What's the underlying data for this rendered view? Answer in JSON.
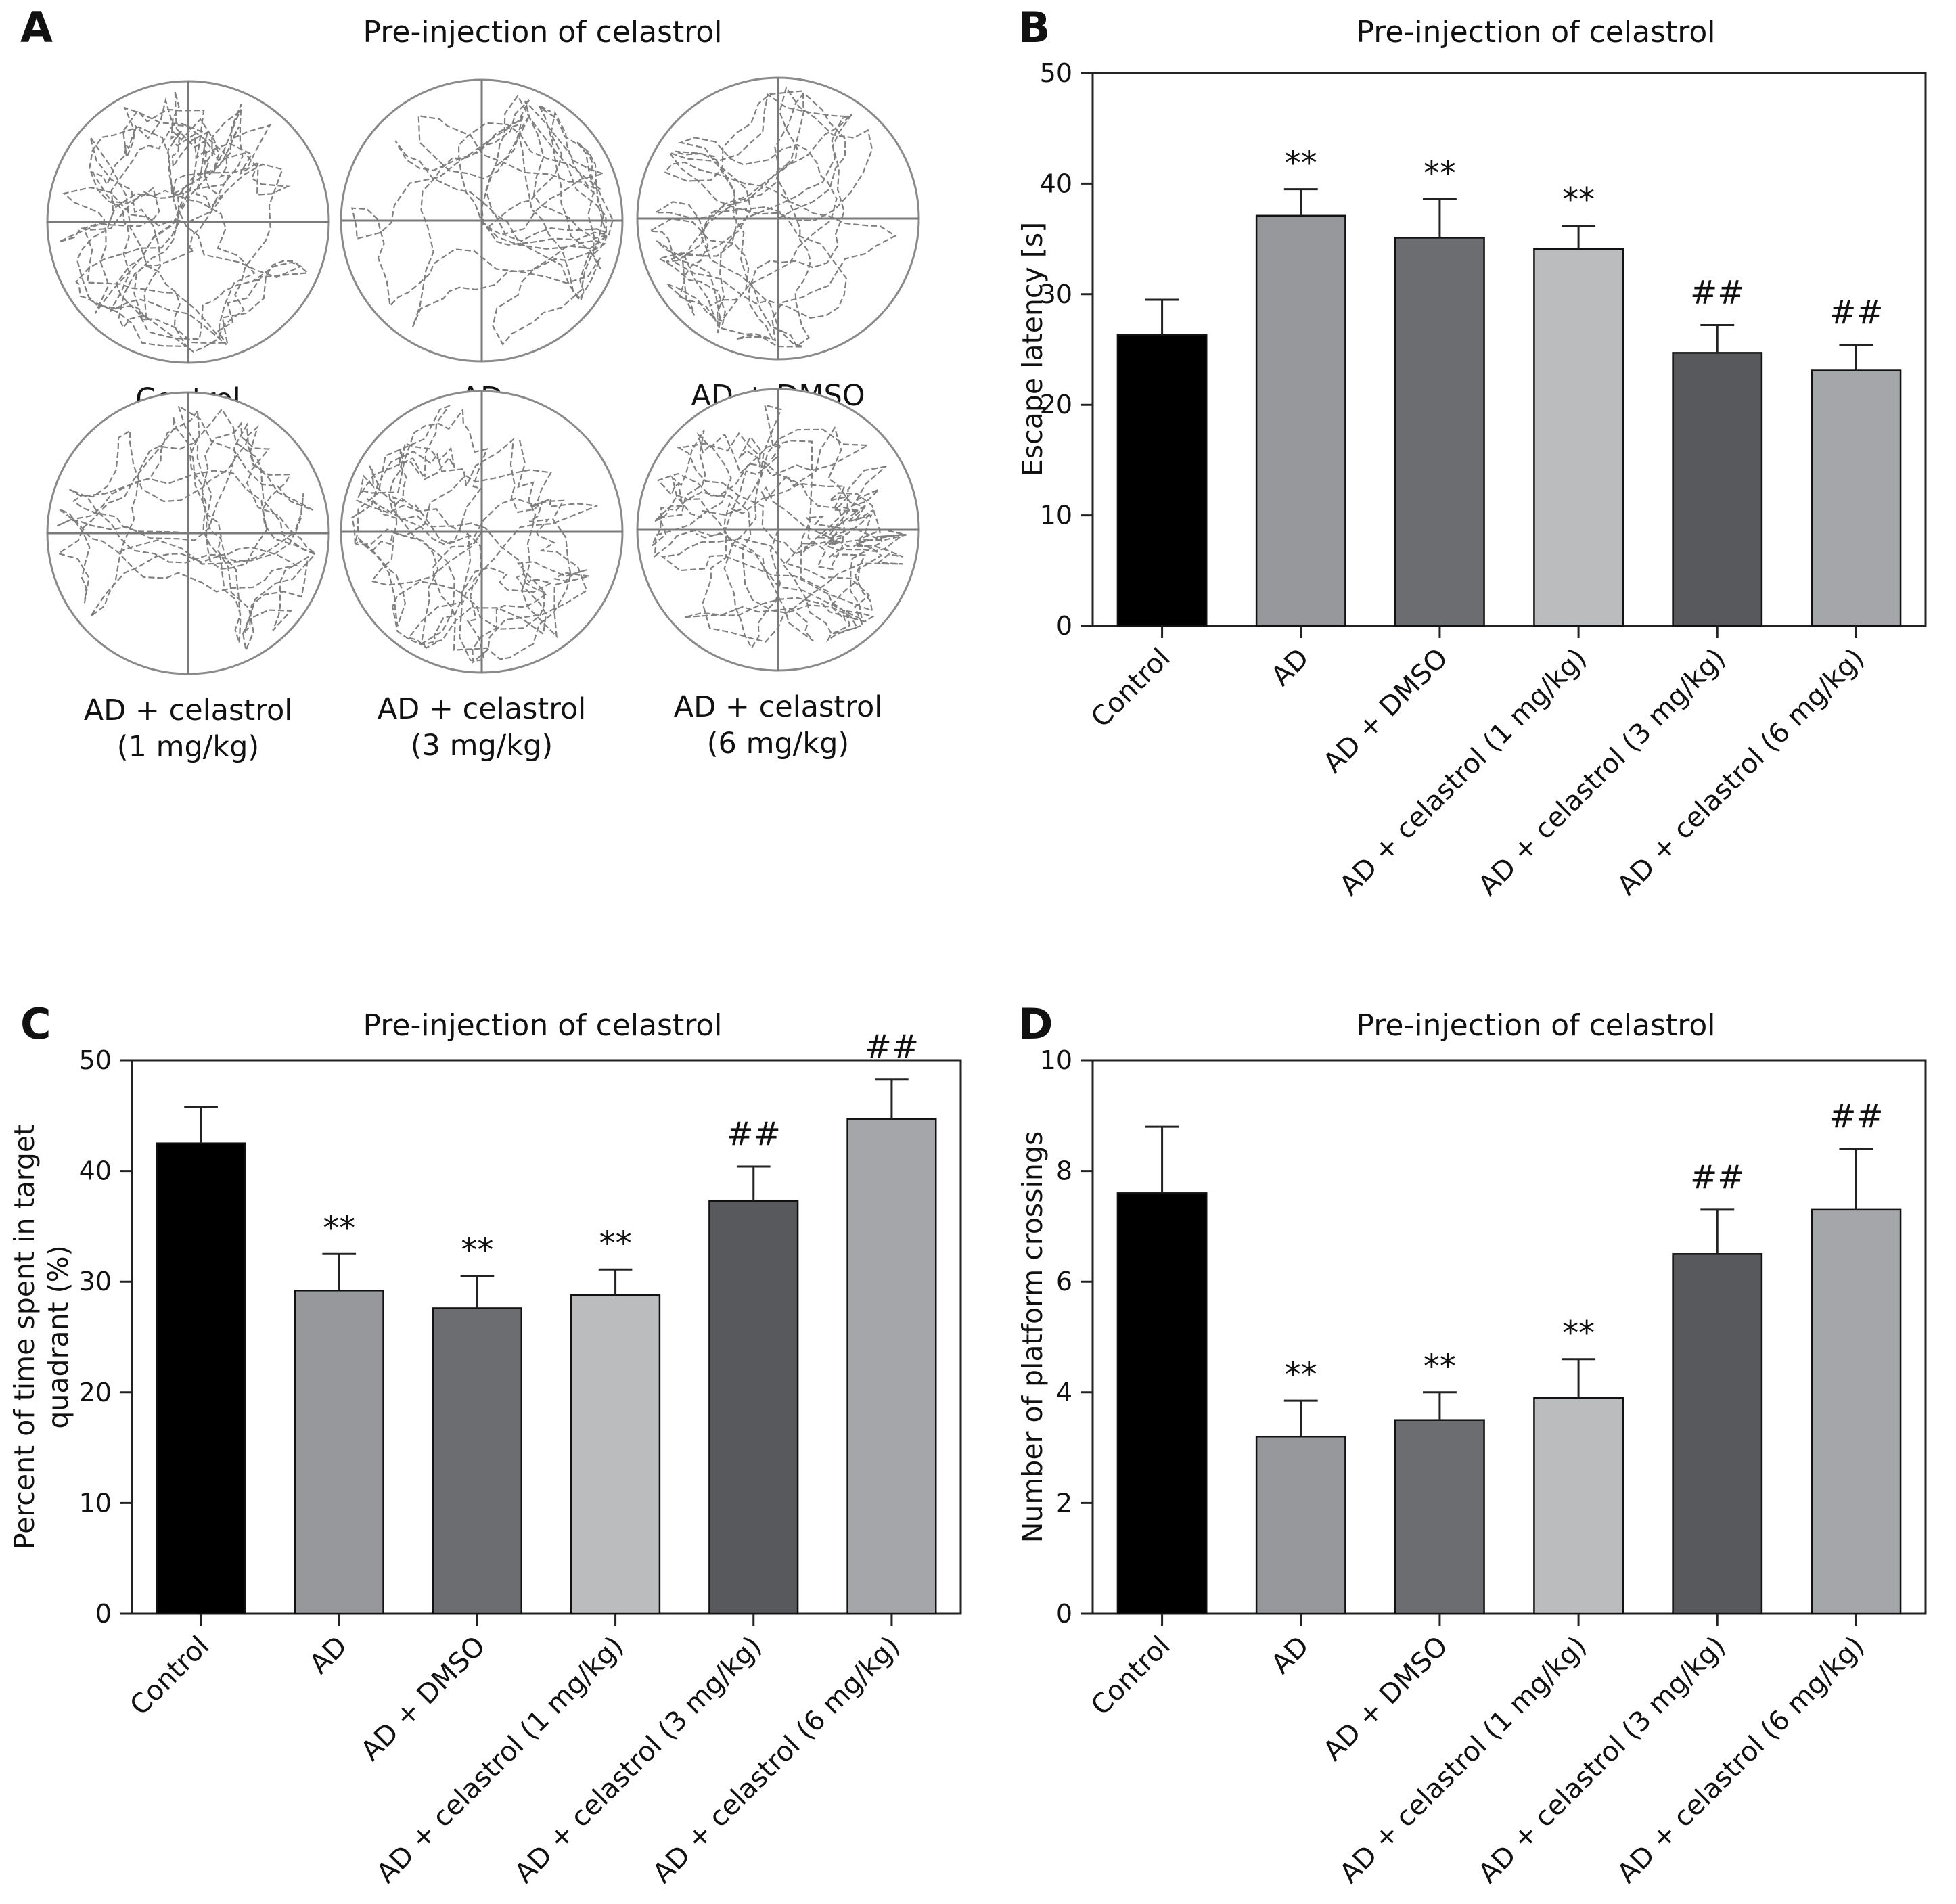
{
  "panels": {
    "A": {
      "letter": "A",
      "title": "Pre-injection of celastrol",
      "groups": [
        {
          "label_lines": [
            "Control"
          ],
          "density": 0.9,
          "cluster": "bottom-left"
        },
        {
          "label_lines": [
            "AD"
          ],
          "density": 0.55,
          "cluster": "none"
        },
        {
          "label_lines": [
            "AD + DMSO"
          ],
          "density": 0.7,
          "cluster": "none"
        },
        {
          "label_lines": [
            "AD + celastrol",
            "(1 mg/kg)"
          ],
          "density": 0.6,
          "cluster": "none"
        },
        {
          "label_lines": [
            "AD + celastrol",
            "(3 mg/kg)"
          ],
          "density": 0.75,
          "cluster": "bottom-left"
        },
        {
          "label_lines": [
            "AD + celastrol",
            "(6 mg/kg)"
          ],
          "density": 0.95,
          "cluster": "bottom-left"
        }
      ]
    },
    "B": {
      "letter": "B"
    },
    "C": {
      "letter": "C"
    },
    "D": {
      "letter": "D"
    }
  },
  "chart_data": [
    {
      "id": "B",
      "type": "bar",
      "title": "Pre-injection of celastrol",
      "ylabel": "Escape latency [s]",
      "xlabel": "",
      "ylim": [
        0,
        50
      ],
      "yticks": [
        0,
        10,
        20,
        30,
        40,
        50
      ],
      "categories": [
        "Control",
        "AD",
        "AD + DMSO",
        "AD + celastrol (1 mg/kg)",
        "AD + celastrol (3 mg/kg)",
        "AD + celastrol (6 mg/kg)"
      ],
      "values": [
        26.3,
        37.1,
        35.1,
        34.1,
        24.7,
        23.1
      ],
      "errors": [
        3.2,
        2.4,
        3.5,
        2.1,
        2.5,
        2.3
      ],
      "annotations": [
        "",
        "**",
        "**",
        "**",
        "##",
        "##"
      ],
      "colors": [
        "#000000",
        "#97989b",
        "#6c6d71",
        "#bbbcbe",
        "#58595c",
        "#a5a6a9"
      ],
      "grid": false
    },
    {
      "id": "C",
      "type": "bar",
      "title": "Pre-injection of celastrol",
      "ylabel": "Percent of time spent in target quadrant (%)",
      "ylabel_lines": [
        "Percent of time spent in target",
        "quadrant (%)"
      ],
      "xlabel": "",
      "ylim": [
        0,
        50
      ],
      "yticks": [
        0,
        10,
        20,
        30,
        40,
        50
      ],
      "categories": [
        "Control",
        "AD",
        "AD + DMSO",
        "AD + celastrol (1 mg/kg)",
        "AD + celastrol (3 mg/kg)",
        "AD + celastrol (6 mg/kg)"
      ],
      "values": [
        42.5,
        29.2,
        27.6,
        28.8,
        37.3,
        44.7
      ],
      "errors": [
        3.3,
        3.3,
        2.9,
        2.3,
        3.1,
        3.6
      ],
      "annotations": [
        "",
        "**",
        "**",
        "**",
        "##",
        "##"
      ],
      "colors": [
        "#000000",
        "#97989b",
        "#6c6d71",
        "#bbbcbe",
        "#58595c",
        "#a5a6a9"
      ],
      "grid": false
    },
    {
      "id": "D",
      "type": "bar",
      "title": "Pre-injection of celastrol",
      "ylabel": "Number of platform crossings",
      "xlabel": "",
      "ylim": [
        0,
        10
      ],
      "yticks": [
        0,
        2,
        4,
        6,
        8,
        10
      ],
      "categories": [
        "Control",
        "AD",
        "AD + DMSO",
        "AD + celastrol (1 mg/kg)",
        "AD + celastrol (3 mg/kg)",
        "AD + celastrol (6 mg/kg)"
      ],
      "values": [
        7.6,
        3.2,
        3.5,
        3.9,
        6.5,
        7.3
      ],
      "errors": [
        1.2,
        0.65,
        0.5,
        0.7,
        0.8,
        1.1
      ],
      "annotations": [
        "",
        "**",
        "**",
        "**",
        "##",
        "##"
      ],
      "colors": [
        "#000000",
        "#97989b",
        "#6c6d71",
        "#bbbcbe",
        "#58595c",
        "#a5a6a9"
      ],
      "grid": false
    }
  ]
}
